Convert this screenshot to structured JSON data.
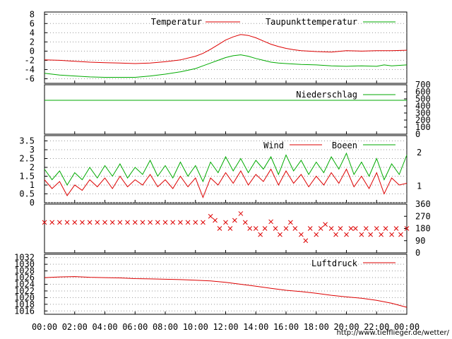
{
  "site_url": "http://www.tiefflieger.de/wetter/",
  "x_ticks": [
    "00:00",
    "02:00",
    "04:00",
    "06:00",
    "08:00",
    "10:00",
    "12:00",
    "14:00",
    "16:00",
    "18:00",
    "20:00",
    "22:00",
    "00:00"
  ],
  "colors": {
    "primary": "#dd0000",
    "secondary": "#00aa00",
    "grid": "#999999"
  },
  "chart_data": [
    {
      "type": "line",
      "x_unit": "hours",
      "xlim": [
        0,
        24
      ],
      "ylim": [
        -7,
        8.5
      ],
      "y_ticks": [
        -6,
        -4,
        -2,
        0,
        2,
        4,
        6,
        8
      ],
      "series": [
        {
          "name": "Temperatur",
          "color": "#dd0000",
          "points": [
            [
              0,
              -1.9
            ],
            [
              1,
              -2.0
            ],
            [
              2,
              -2.2
            ],
            [
              3,
              -2.4
            ],
            [
              4,
              -2.5
            ],
            [
              5,
              -2.6
            ],
            [
              6,
              -2.7
            ],
            [
              7,
              -2.6
            ],
            [
              8,
              -2.3
            ],
            [
              9,
              -1.9
            ],
            [
              10,
              -1.1
            ],
            [
              10.5,
              -0.5
            ],
            [
              11,
              0.4
            ],
            [
              11.5,
              1.4
            ],
            [
              12,
              2.4
            ],
            [
              12.5,
              3.1
            ],
            [
              13,
              3.6
            ],
            [
              13.5,
              3.4
            ],
            [
              14,
              2.9
            ],
            [
              14.5,
              2.2
            ],
            [
              15,
              1.5
            ],
            [
              15.5,
              1.0
            ],
            [
              16,
              0.6
            ],
            [
              16.5,
              0.3
            ],
            [
              17,
              0.1
            ],
            [
              18,
              -0.1
            ],
            [
              19,
              -0.2
            ],
            [
              20,
              0.1
            ],
            [
              21,
              0.0
            ],
            [
              22,
              0.1
            ],
            [
              23,
              0.1
            ],
            [
              24,
              0.2
            ]
          ]
        },
        {
          "name": "Taupunkttemperatur",
          "color": "#00aa00",
          "points": [
            [
              0,
              -4.8
            ],
            [
              1,
              -5.2
            ],
            [
              2,
              -5.4
            ],
            [
              3,
              -5.6
            ],
            [
              4,
              -5.7
            ],
            [
              5,
              -5.7
            ],
            [
              6,
              -5.7
            ],
            [
              7,
              -5.4
            ],
            [
              8,
              -5.0
            ],
            [
              9,
              -4.5
            ],
            [
              10,
              -3.8
            ],
            [
              10.5,
              -3.2
            ],
            [
              11,
              -2.6
            ],
            [
              11.5,
              -2.0
            ],
            [
              12,
              -1.4
            ],
            [
              12.5,
              -1.0
            ],
            [
              13,
              -0.8
            ],
            [
              13.5,
              -1.1
            ],
            [
              14,
              -1.6
            ],
            [
              14.5,
              -2.0
            ],
            [
              15,
              -2.4
            ],
            [
              15.5,
              -2.6
            ],
            [
              16,
              -2.7
            ],
            [
              17,
              -2.9
            ],
            [
              18,
              -3.0
            ],
            [
              19,
              -3.2
            ],
            [
              20,
              -3.3
            ],
            [
              21,
              -3.2
            ],
            [
              22,
              -3.3
            ],
            [
              22.5,
              -3.0
            ],
            [
              23,
              -3.2
            ],
            [
              24,
              -3.0
            ]
          ]
        }
      ]
    },
    {
      "type": "line",
      "x_unit": "hours",
      "xlim": [
        0,
        24
      ],
      "ylim": [
        0,
        700
      ],
      "y_ticks": [
        0,
        100,
        200,
        300,
        400,
        500,
        600,
        700
      ],
      "series": [
        {
          "name": "Niederschlag",
          "color": "#00aa00",
          "points": [
            [
              0,
              480
            ],
            [
              24,
              480
            ]
          ]
        }
      ]
    },
    {
      "type": "line",
      "x_unit": "hours",
      "xlim": [
        0,
        24
      ],
      "ylim": [
        0,
        3.8
      ],
      "y_ticks": [
        0,
        0.5,
        1,
        1.5,
        2,
        2.5,
        3,
        3.5
      ],
      "y2_ticks": [
        1,
        2
      ],
      "series": [
        {
          "name": "Wind",
          "color": "#dd0000",
          "points": [
            [
              0,
              1.3
            ],
            [
              0.5,
              0.8
            ],
            [
              1,
              1.2
            ],
            [
              1.5,
              0.4
            ],
            [
              2,
              1.0
            ],
            [
              2.5,
              0.7
            ],
            [
              3,
              1.3
            ],
            [
              3.5,
              0.9
            ],
            [
              4,
              1.4
            ],
            [
              4.5,
              0.8
            ],
            [
              5,
              1.5
            ],
            [
              5.5,
              0.9
            ],
            [
              6,
              1.3
            ],
            [
              6.5,
              1.0
            ],
            [
              7,
              1.6
            ],
            [
              7.5,
              0.9
            ],
            [
              8,
              1.3
            ],
            [
              8.5,
              0.8
            ],
            [
              9,
              1.5
            ],
            [
              9.5,
              0.9
            ],
            [
              10,
              1.4
            ],
            [
              10.5,
              0.3
            ],
            [
              11,
              1.4
            ],
            [
              11.5,
              1.0
            ],
            [
              12,
              1.7
            ],
            [
              12.5,
              1.1
            ],
            [
              13,
              1.8
            ],
            [
              13.5,
              1.0
            ],
            [
              14,
              1.6
            ],
            [
              14.5,
              1.2
            ],
            [
              15,
              1.9
            ],
            [
              15.5,
              1.0
            ],
            [
              16,
              1.8
            ],
            [
              16.5,
              1.1
            ],
            [
              17,
              1.6
            ],
            [
              17.5,
              0.9
            ],
            [
              18,
              1.5
            ],
            [
              18.5,
              1.0
            ],
            [
              19,
              1.7
            ],
            [
              19.5,
              1.1
            ],
            [
              20,
              1.9
            ],
            [
              20.5,
              0.9
            ],
            [
              21,
              1.5
            ],
            [
              21.5,
              0.8
            ],
            [
              22,
              1.7
            ],
            [
              22.5,
              0.5
            ],
            [
              23,
              1.4
            ],
            [
              23.5,
              1.0
            ],
            [
              24,
              1.1
            ]
          ]
        },
        {
          "name": "Boeen",
          "color": "#00aa00",
          "points": [
            [
              0,
              1.9
            ],
            [
              0.5,
              1.3
            ],
            [
              1,
              1.8
            ],
            [
              1.5,
              1.0
            ],
            [
              2,
              1.7
            ],
            [
              2.5,
              1.3
            ],
            [
              3,
              2.0
            ],
            [
              3.5,
              1.4
            ],
            [
              4,
              2.1
            ],
            [
              4.5,
              1.5
            ],
            [
              5,
              2.2
            ],
            [
              5.5,
              1.4
            ],
            [
              6,
              2.0
            ],
            [
              6.5,
              1.6
            ],
            [
              7,
              2.4
            ],
            [
              7.5,
              1.5
            ],
            [
              8,
              2.1
            ],
            [
              8.5,
              1.4
            ],
            [
              9,
              2.3
            ],
            [
              9.5,
              1.5
            ],
            [
              10,
              2.1
            ],
            [
              10.5,
              1.2
            ],
            [
              11,
              2.3
            ],
            [
              11.5,
              1.7
            ],
            [
              12,
              2.6
            ],
            [
              12.5,
              1.8
            ],
            [
              13,
              2.5
            ],
            [
              13.5,
              1.7
            ],
            [
              14,
              2.4
            ],
            [
              14.5,
              1.9
            ],
            [
              15,
              2.6
            ],
            [
              15.5,
              1.6
            ],
            [
              16,
              2.7
            ],
            [
              16.5,
              1.8
            ],
            [
              17,
              2.4
            ],
            [
              17.5,
              1.6
            ],
            [
              18,
              2.3
            ],
            [
              18.5,
              1.7
            ],
            [
              19,
              2.6
            ],
            [
              19.5,
              1.9
            ],
            [
              20,
              2.8
            ],
            [
              20.5,
              1.6
            ],
            [
              21,
              2.3
            ],
            [
              21.5,
              1.5
            ],
            [
              22,
              2.5
            ],
            [
              22.5,
              1.3
            ],
            [
              23,
              2.2
            ],
            [
              23.5,
              1.6
            ],
            [
              24,
              2.7
            ]
          ]
        }
      ]
    },
    {
      "type": "scatter",
      "x_unit": "hours",
      "xlim": [
        0,
        24
      ],
      "ylim": [
        0,
        360
      ],
      "y_ticks": [
        0,
        90,
        180,
        270,
        360
      ],
      "marker": "x",
      "color": "#dd0000",
      "points": [
        [
          0,
          225
        ],
        [
          0.5,
          225
        ],
        [
          1,
          225
        ],
        [
          1.5,
          225
        ],
        [
          2,
          225
        ],
        [
          2.5,
          225
        ],
        [
          3,
          225
        ],
        [
          3.5,
          225
        ],
        [
          4,
          225
        ],
        [
          4.5,
          225
        ],
        [
          5,
          225
        ],
        [
          5.5,
          225
        ],
        [
          6,
          225
        ],
        [
          6.5,
          225
        ],
        [
          7,
          225
        ],
        [
          7.5,
          225
        ],
        [
          8,
          225
        ],
        [
          8.5,
          225
        ],
        [
          9,
          225
        ],
        [
          9.5,
          225
        ],
        [
          10,
          225
        ],
        [
          10.5,
          225
        ],
        [
          11,
          270
        ],
        [
          11.3,
          240
        ],
        [
          11.6,
          180
        ],
        [
          12,
          225
        ],
        [
          12.3,
          180
        ],
        [
          12.6,
          240
        ],
        [
          13,
          290
        ],
        [
          13.3,
          225
        ],
        [
          13.6,
          180
        ],
        [
          14,
          180
        ],
        [
          14.3,
          135
        ],
        [
          14.6,
          180
        ],
        [
          15,
          230
        ],
        [
          15.3,
          180
        ],
        [
          15.6,
          135
        ],
        [
          16,
          180
        ],
        [
          16.3,
          225
        ],
        [
          16.6,
          180
        ],
        [
          17,
          135
        ],
        [
          17.3,
          90
        ],
        [
          17.6,
          180
        ],
        [
          18,
          135
        ],
        [
          18.3,
          180
        ],
        [
          18.6,
          210
        ],
        [
          19,
          180
        ],
        [
          19.3,
          135
        ],
        [
          19.6,
          180
        ],
        [
          20,
          135
        ],
        [
          20.3,
          180
        ],
        [
          20.6,
          180
        ],
        [
          21,
          135
        ],
        [
          21.3,
          180
        ],
        [
          21.6,
          135
        ],
        [
          22,
          180
        ],
        [
          22.3,
          135
        ],
        [
          22.6,
          180
        ],
        [
          23,
          135
        ],
        [
          23.3,
          180
        ],
        [
          23.6,
          135
        ],
        [
          24,
          180
        ]
      ]
    },
    {
      "type": "line",
      "x_unit": "hours",
      "xlim": [
        0,
        24
      ],
      "ylim": [
        1015,
        1033
      ],
      "y_ticks": [
        1016,
        1018,
        1020,
        1022,
        1024,
        1026,
        1028,
        1030,
        1032
      ],
      "series": [
        {
          "name": "Luftdruck",
          "color": "#dd0000",
          "points": [
            [
              0,
              1026.0
            ],
            [
              1,
              1026.2
            ],
            [
              2,
              1026.3
            ],
            [
              3,
              1026.1
            ],
            [
              4,
              1026.0
            ],
            [
              5,
              1025.9
            ],
            [
              6,
              1025.7
            ],
            [
              7,
              1025.6
            ],
            [
              8,
              1025.5
            ],
            [
              9,
              1025.4
            ],
            [
              10,
              1025.2
            ],
            [
              11,
              1025.0
            ],
            [
              12,
              1024.6
            ],
            [
              13,
              1024.0
            ],
            [
              14,
              1023.4
            ],
            [
              15,
              1022.8
            ],
            [
              16,
              1022.2
            ],
            [
              17,
              1021.8
            ],
            [
              18,
              1021.3
            ],
            [
              19,
              1020.7
            ],
            [
              20,
              1020.2
            ],
            [
              21,
              1019.8
            ],
            [
              22,
              1019.2
            ],
            [
              23,
              1018.3
            ],
            [
              24,
              1017.1
            ]
          ]
        }
      ]
    }
  ]
}
